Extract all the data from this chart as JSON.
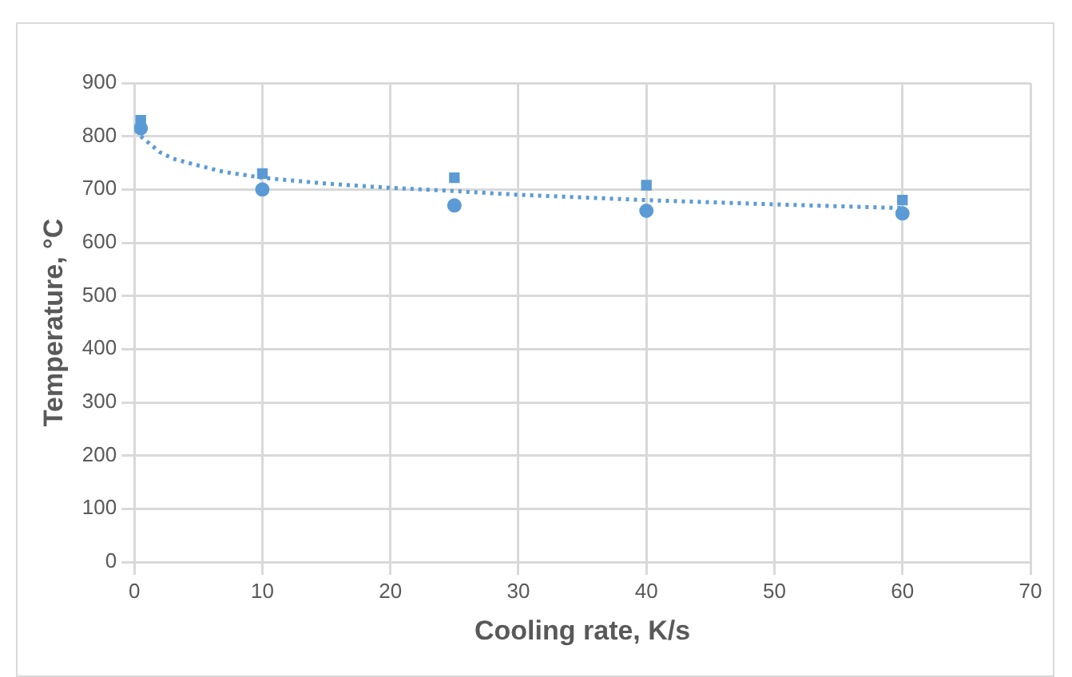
{
  "chart_data": {
    "type": "scatter",
    "xlabel": "Cooling rate, K/s",
    "ylabel": "Temperature, °C",
    "xlim": [
      0,
      70
    ],
    "xticks": [
      0,
      10,
      20,
      30,
      40,
      50,
      60,
      70
    ],
    "ylim": [
      0,
      900
    ],
    "yticks": [
      0,
      100,
      200,
      300,
      400,
      500,
      600,
      700,
      800,
      900
    ],
    "grid": true,
    "legend": false,
    "series": [
      {
        "color": "#5b9bd5",
        "marker": "square",
        "x": [
          0.5,
          10,
          25,
          40,
          60
        ],
        "values": [
          830,
          730,
          722,
          708,
          680
        ]
      },
      {
        "color": "#5b9bd5",
        "marker": "circle",
        "x": [
          0.5,
          10,
          25,
          40,
          60
        ],
        "values": [
          815,
          700,
          670,
          660,
          655
        ]
      },
      {
        "type": "line",
        "color": "#5b9bd5",
        "marker": "none",
        "line_style": "dotted",
        "x": [
          0.5,
          1,
          2,
          3,
          5,
          7,
          10,
          15,
          20,
          25,
          30,
          40,
          50,
          60
        ],
        "values": [
          800,
          790,
          770,
          758,
          745,
          733,
          722,
          711,
          703,
          697,
          690,
          680,
          672,
          665
        ]
      }
    ]
  }
}
